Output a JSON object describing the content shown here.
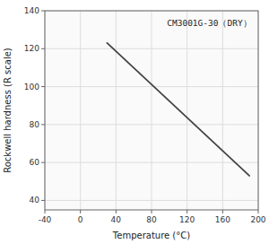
{
  "chart_data": {
    "type": "line",
    "x": [
      30,
      190
    ],
    "series": [
      {
        "values": [
          123,
          53
        ],
        "color": "#444444"
      }
    ],
    "xlabel": "Temperature (°C)",
    "ylabel": "Rockwell hardness (R scale)",
    "annotations": [
      {
        "text": "CM3001G-30（DRY）",
        "x": 145,
        "y": 132
      }
    ],
    "xlim": [
      -40,
      200
    ],
    "ylim": [
      35,
      140
    ],
    "xticks": [
      -40,
      0,
      40,
      80,
      120,
      160,
      200
    ],
    "yticks": [
      40,
      60,
      80,
      100,
      120,
      140
    ],
    "grid": true
  }
}
